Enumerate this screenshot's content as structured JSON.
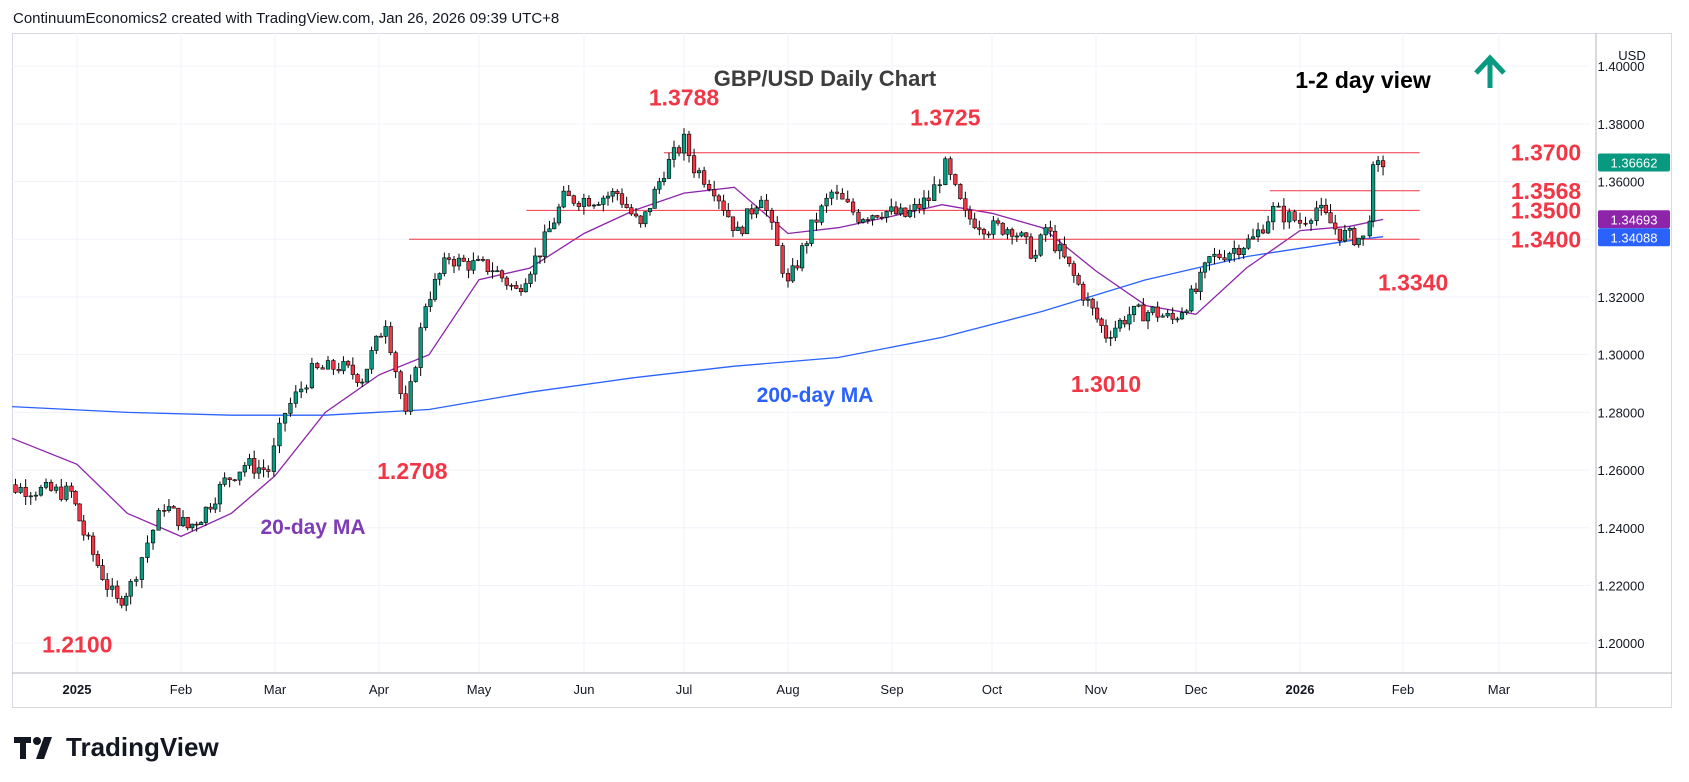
{
  "header": {
    "text": "ContinuumEconomics2 created with TradingView.com, Jan 26, 2026 09:39 UTC+8"
  },
  "branding": {
    "logo_text": "TradingView",
    "icon": "tradingview-logo-icon"
  },
  "colors": {
    "up": "#089981",
    "down": "#f23645",
    "ma20": "#8e24aa",
    "ma200": "#2962ff",
    "levels": "#f23645",
    "annotation_red": "#f23645",
    "arrow": "#089981",
    "ma200_label": "#2962ff",
    "ma20_label": "#7e3cb6"
  },
  "chart_data": {
    "type": "candlestick",
    "title": "GBP/USD Daily Chart",
    "view_label": "1-2 day view",
    "view_icon": "arrow-up-icon",
    "currency": "USD",
    "ylim": [
      1.19,
      1.4115
    ],
    "y_ticks": [
      "1.40000",
      "1.38000",
      "1.36000",
      "1.34000",
      "1.32000",
      "1.30000",
      "1.28000",
      "1.26000",
      "1.24000",
      "1.22000",
      "1.20000"
    ],
    "x_ticks": [
      "2025",
      "Feb",
      "Mar",
      "Apr",
      "May",
      "Jun",
      "Jul",
      "Aug",
      "Sep",
      "Oct",
      "Nov",
      "Dec",
      "2026",
      "Feb",
      "Mar"
    ],
    "price_badges": [
      {
        "label": "1.36662",
        "value": 1.36662,
        "color": "#089981"
      },
      {
        "label": "1.34693",
        "value": 1.34693,
        "color": "#8e24aa"
      },
      {
        "label": "1.34088",
        "value": 1.34088,
        "color": "#2962ff"
      }
    ],
    "levels": [
      {
        "label": "1.3700",
        "value": 1.37,
        "from": "Jun 25",
        "to": "Jan 28"
      },
      {
        "label": "1.3568",
        "value": 1.3568,
        "from": "Dec 23",
        "to": "Jan 28"
      },
      {
        "label": "1.3500",
        "value": 1.35,
        "from": "May 15",
        "to": "Jan 28"
      },
      {
        "label": "1.3400",
        "value": 1.34,
        "from": "Apr 10",
        "to": "Jan 28"
      }
    ],
    "annotations": [
      {
        "text": "1.3788",
        "date": "Jul 1",
        "value": 1.3788
      },
      {
        "text": "1.3725",
        "date": "Sep 17",
        "value": 1.3725
      },
      {
        "text": "1.2708",
        "date": "Apr 11",
        "value": 1.2708
      },
      {
        "text": "1.3010",
        "date": "Nov 4",
        "value": 1.301
      },
      {
        "text": "1.3340",
        "date": "Jan 20",
        "value": 1.334
      },
      {
        "text": "1.2100",
        "date": "Jan 13",
        "value": 1.21
      }
    ],
    "ma_labels": [
      {
        "text": "200-day MA",
        "series": "ma200"
      },
      {
        "text": "20-day MA",
        "series": "ma20"
      }
    ],
    "anchors": [
      [
        "Dec 16",
        1.2645
      ],
      [
        "Dec 20",
        1.254
      ],
      [
        "Dec 31",
        1.252
      ],
      [
        "Jan 3",
        1.238
      ],
      [
        "Jan 10",
        1.22
      ],
      [
        "Jan 13",
        1.214
      ],
      [
        "Jan 17",
        1.22
      ],
      [
        "Jan 22",
        1.235
      ],
      [
        "Jan 27",
        1.248
      ],
      [
        "Feb 3",
        1.24
      ],
      [
        "Feb 7",
        1.244
      ],
      [
        "Feb 14",
        1.256
      ],
      [
        "Feb 20",
        1.262
      ],
      [
        "Feb 27",
        1.26
      ],
      [
        "Mar 4",
        1.28
      ],
      [
        "Mar 12",
        1.294
      ],
      [
        "Mar 20",
        1.296
      ],
      [
        "Mar 27",
        1.292
      ],
      [
        "Apr 3",
        1.312
      ],
      [
        "Apr 9",
        1.278
      ],
      [
        "Apr 15",
        1.318
      ],
      [
        "Apr 22",
        1.334
      ],
      [
        "Apr 25",
        1.332
      ],
      [
        "May 5",
        1.33
      ],
      [
        "May 12",
        1.322
      ],
      [
        "May 19",
        1.336
      ],
      [
        "May 26",
        1.354
      ],
      [
        "Jun 4",
        1.354
      ],
      [
        "Jun 11",
        1.356
      ],
      [
        "Jun 18",
        1.344
      ],
      [
        "Jun 25",
        1.364
      ],
      [
        "Jul 1",
        1.374
      ],
      [
        "Jul 4",
        1.365
      ],
      [
        "Jul 10",
        1.358
      ],
      [
        "Jul 17",
        1.342
      ],
      [
        "Jul 24",
        1.356
      ],
      [
        "Aug 1",
        1.324
      ],
      [
        "Aug 8",
        1.344
      ],
      [
        "Aug 14",
        1.356
      ],
      [
        "Aug 22",
        1.348
      ],
      [
        "Aug 29",
        1.35
      ],
      [
        "Sep 5",
        1.348
      ],
      [
        "Sep 12",
        1.354
      ],
      [
        "Sep 17",
        1.365
      ],
      [
        "Sep 23",
        1.348
      ],
      [
        "Sep 30",
        1.344
      ],
      [
        "Oct 7",
        1.344
      ],
      [
        "Oct 14",
        1.334
      ],
      [
        "Oct 17",
        1.344
      ],
      [
        "Oct 24",
        1.33
      ],
      [
        "Oct 31",
        1.315
      ],
      [
        "Nov 4",
        1.307
      ],
      [
        "Nov 11",
        1.314
      ],
      [
        "Nov 18",
        1.315
      ],
      [
        "Nov 24",
        1.312
      ],
      [
        "Dec 1",
        1.322
      ],
      [
        "Dec 5",
        1.333
      ],
      [
        "Dec 11",
        1.336
      ],
      [
        "Dec 18",
        1.34
      ],
      [
        "Dec 24",
        1.35
      ],
      [
        "Jan 1",
        1.346
      ],
      [
        "Jan 6",
        1.351
      ],
      [
        "Jan 13",
        1.342
      ],
      [
        "Jan 16",
        1.341
      ],
      [
        "Jan 20",
        1.34
      ],
      [
        "Jan 22",
        1.349
      ],
      [
        "Jan 23",
        1.363
      ],
      [
        "Jan 26",
        1.3666
      ]
    ],
    "ma20_points": [
      [
        "Dec 16",
        1.271
      ],
      [
        "Jan 1",
        1.262
      ],
      [
        "Jan 16",
        1.245
      ],
      [
        "Feb 1",
        1.237
      ],
      [
        "Feb 16",
        1.245
      ],
      [
        "Mar 1",
        1.258
      ],
      [
        "Mar 16",
        1.28
      ],
      [
        "Apr 1",
        1.293
      ],
      [
        "Apr 16",
        1.3
      ],
      [
        "May 1",
        1.326
      ],
      [
        "May 16",
        1.33
      ],
      [
        "Jun 1",
        1.342
      ],
      [
        "Jun 16",
        1.35
      ],
      [
        "Jul 1",
        1.356
      ],
      [
        "Jul 16",
        1.358
      ],
      [
        "Aug 1",
        1.342
      ],
      [
        "Aug 16",
        1.344
      ],
      [
        "Sep 1",
        1.348
      ],
      [
        "Sep 16",
        1.352
      ],
      [
        "Oct 1",
        1.349
      ],
      [
        "Oct 16",
        1.344
      ],
      [
        "Nov 1",
        1.329
      ],
      [
        "Nov 16",
        1.317
      ],
      [
        "Dec 1",
        1.314
      ],
      [
        "Dec 16",
        1.33
      ],
      [
        "Jan 1",
        1.343
      ],
      [
        "Jan 16",
        1.3445
      ],
      [
        "Jan 26",
        1.3469
      ]
    ],
    "ma200_points": [
      [
        "Dec 16",
        1.282
      ],
      [
        "Jan 16",
        1.28
      ],
      [
        "Feb 16",
        1.279
      ],
      [
        "Mar 16",
        1.279
      ],
      [
        "Apr 16",
        1.281
      ],
      [
        "May 16",
        1.287
      ],
      [
        "Jun 16",
        1.292
      ],
      [
        "Jul 16",
        1.296
      ],
      [
        "Aug 16",
        1.299
      ],
      [
        "Sep 16",
        1.306
      ],
      [
        "Oct 16",
        1.315
      ],
      [
        "Nov 16",
        1.326
      ],
      [
        "Dec 16",
        1.334
      ],
      [
        "Jan 16",
        1.3395
      ],
      [
        "Jan 26",
        1.3409
      ]
    ]
  }
}
